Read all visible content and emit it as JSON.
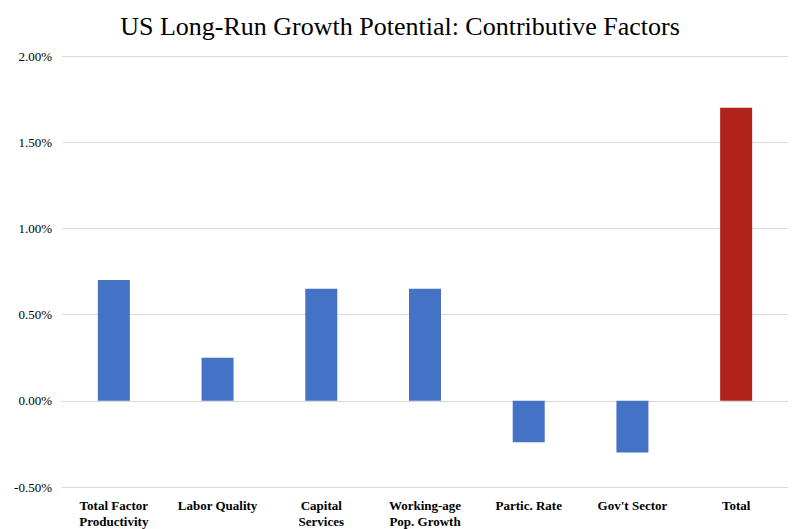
{
  "chart_data": {
    "type": "bar",
    "title": "US Long-Run Growth Potential: Contributive Factors",
    "categories": [
      "Total Factor\nProductivity",
      "Labor Quality",
      "Capital\nServices",
      "Working-age\nPop. Growth",
      "Partic. Rate",
      "Gov't Sector",
      "Total"
    ],
    "values": [
      0.7,
      0.25,
      0.65,
      0.65,
      -0.24,
      -0.3,
      1.7
    ],
    "colors": [
      "#4472c4",
      "#4472c4",
      "#4472c4",
      "#4472c4",
      "#4472c4",
      "#4472c4",
      "#b0221a"
    ],
    "ylim": [
      -0.5,
      2.0
    ],
    "yticks": [
      {
        "value": -0.5,
        "label": "-0.50%"
      },
      {
        "value": 0,
        "label": "0.00%"
      },
      {
        "value": 0.5,
        "label": "0.50%"
      },
      {
        "value": 1.0,
        "label": "1.00%"
      },
      {
        "value": 1.5,
        "label": "1.50%"
      },
      {
        "value": 2.0,
        "label": "2.00%"
      }
    ],
    "grid": true
  }
}
